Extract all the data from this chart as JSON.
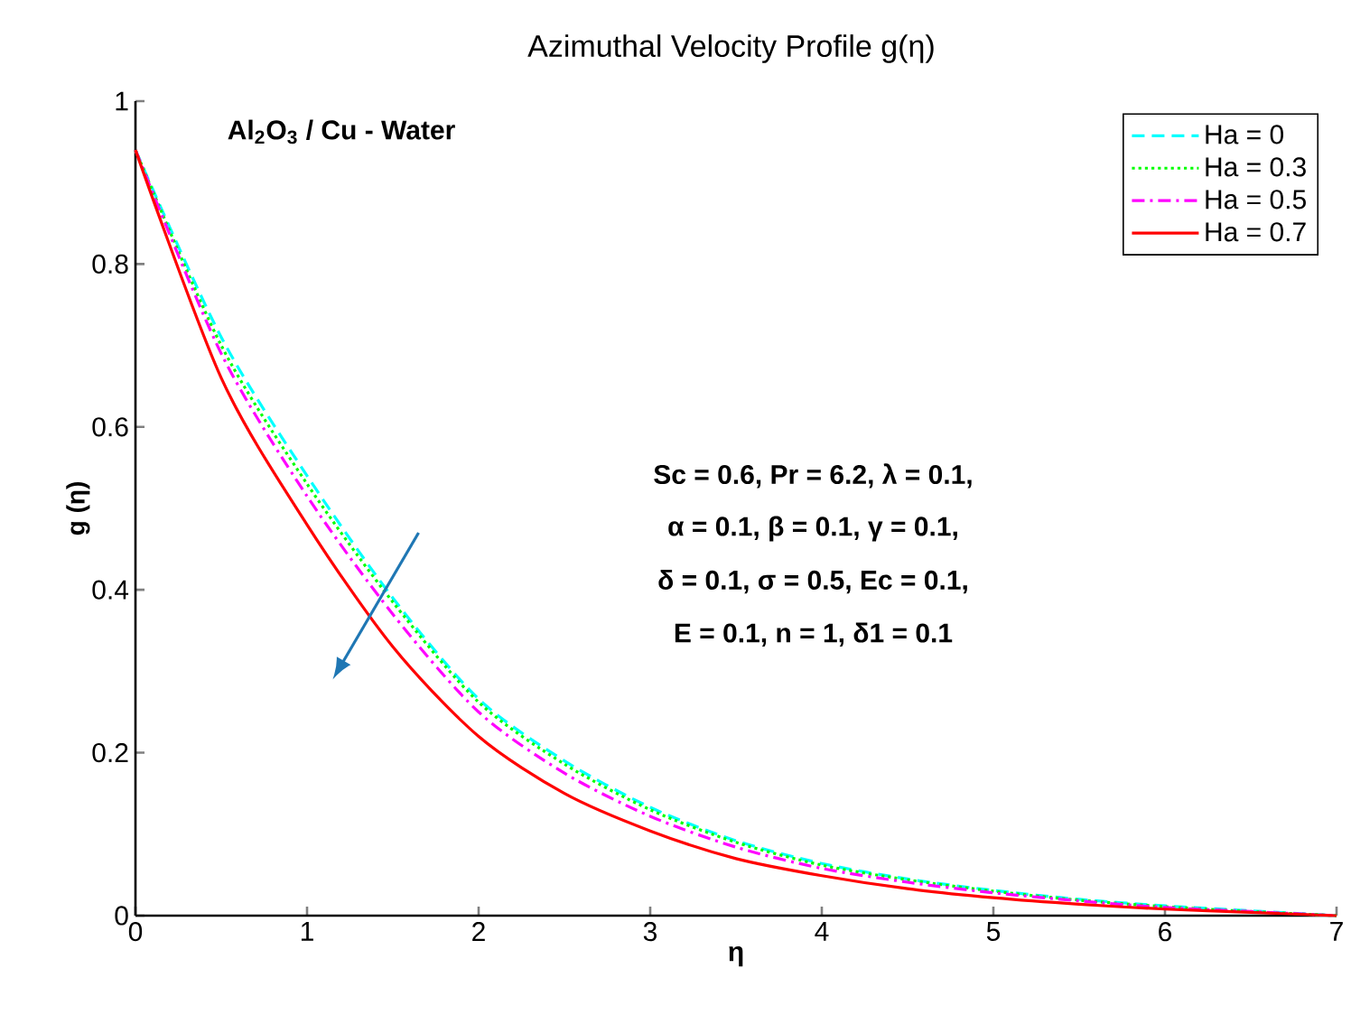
{
  "chart_data": {
    "type": "line",
    "title": "Azimuthal Velocity Profile g(η)",
    "xlabel": "η",
    "ylabel": "g (η)",
    "x": [
      0,
      0.5,
      1,
      1.5,
      2,
      2.5,
      3,
      3.5,
      4,
      4.5,
      5,
      5.5,
      6,
      6.5,
      7
    ],
    "series": [
      {
        "name": "Ha = 0",
        "color": "#00ffff",
        "line_style": "dashed",
        "values": [
          0.94,
          0.71,
          0.54,
          0.39,
          0.266,
          0.19,
          0.133,
          0.092,
          0.064,
          0.045,
          0.031,
          0.02,
          0.012,
          0.006,
          0
        ]
      },
      {
        "name": "Ha = 0.3",
        "color": "#00ff00",
        "line_style": "dotted",
        "values": [
          0.94,
          0.7,
          0.53,
          0.385,
          0.262,
          0.186,
          0.13,
          0.09,
          0.062,
          0.044,
          0.03,
          0.019,
          0.011,
          0.005,
          0
        ]
      },
      {
        "name": "Ha = 0.5",
        "color": "#ff00ff",
        "line_style": "dashdot",
        "values": [
          0.94,
          0.69,
          0.515,
          0.37,
          0.25,
          0.175,
          0.122,
          0.084,
          0.058,
          0.041,
          0.028,
          0.018,
          0.01,
          0.005,
          0
        ]
      },
      {
        "name": "Ha = 0.7",
        "color": "#ff0000",
        "line_style": "solid",
        "values": [
          0.94,
          0.66,
          0.48,
          0.33,
          0.22,
          0.15,
          0.104,
          0.07,
          0.049,
          0.033,
          0.022,
          0.014,
          0.008,
          0.004,
          0
        ]
      }
    ],
    "xlim": [
      0,
      7
    ],
    "ylim": [
      0,
      1
    ],
    "xticks": [
      0,
      1,
      2,
      3,
      4,
      5,
      6,
      7
    ],
    "yticks": [
      0,
      0.2,
      0.4,
      0.6,
      0.8,
      1
    ],
    "legend": "top right",
    "annotations": [
      "Al$_{2}$O$_{3}$ / Cu - Water",
      "Sc = 0.6, Pr = 6.2, λ = 0.1,",
      "α = 0.1, β = 0.1, γ = 0.1,",
      "δ = 0.1, σ = 0.5, Ec = 0.1,",
      "E = 0.1, n = 1, δ1 = 0.1"
    ]
  }
}
